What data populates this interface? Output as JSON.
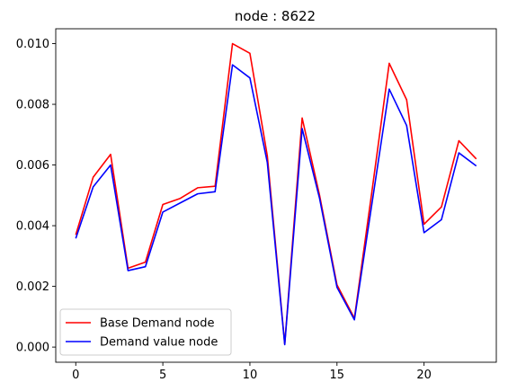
{
  "chart_data": {
    "type": "line",
    "title": "node : 8622",
    "xlabel": "",
    "ylabel": "",
    "xlim": [
      -1.15,
      24.15
    ],
    "ylim": [
      -0.0005,
      0.01049
    ],
    "x_ticks": [
      0,
      5,
      10,
      15,
      20
    ],
    "x_tick_labels": [
      "0",
      "5",
      "10",
      "15",
      "20"
    ],
    "y_ticks": [
      0.0,
      0.002,
      0.004,
      0.006,
      0.008,
      0.01
    ],
    "y_tick_labels": [
      "0.000",
      "0.002",
      "0.004",
      "0.006",
      "0.008",
      "0.010"
    ],
    "grid": false,
    "legend_position": "lower-left",
    "x": [
      0,
      1,
      2,
      3,
      4,
      5,
      6,
      7,
      8,
      9,
      10,
      11,
      12,
      13,
      14,
      15,
      16,
      17,
      18,
      19,
      20,
      21,
      22,
      23
    ],
    "series": [
      {
        "name": "Base Demand node",
        "color": "#ff0000",
        "values": [
          0.0037,
          0.0056,
          0.00635,
          0.0026,
          0.0028,
          0.0047,
          0.0049,
          0.00525,
          0.0053,
          0.01,
          0.00968,
          0.0063,
          0.0001,
          0.00755,
          0.005,
          0.00205,
          0.00095,
          0.0051,
          0.00935,
          0.00815,
          0.00405,
          0.00462,
          0.0068,
          0.0062
        ]
      },
      {
        "name": "Demand value node",
        "color": "#0000ff",
        "values": [
          0.00358,
          0.00528,
          0.006,
          0.00252,
          0.00265,
          0.00445,
          0.00475,
          0.00505,
          0.00512,
          0.0093,
          0.00887,
          0.00608,
          8e-05,
          0.0072,
          0.0049,
          0.00197,
          0.0009,
          0.0047,
          0.0085,
          0.0073,
          0.00377,
          0.0042,
          0.0064,
          0.00597
        ]
      }
    ]
  }
}
